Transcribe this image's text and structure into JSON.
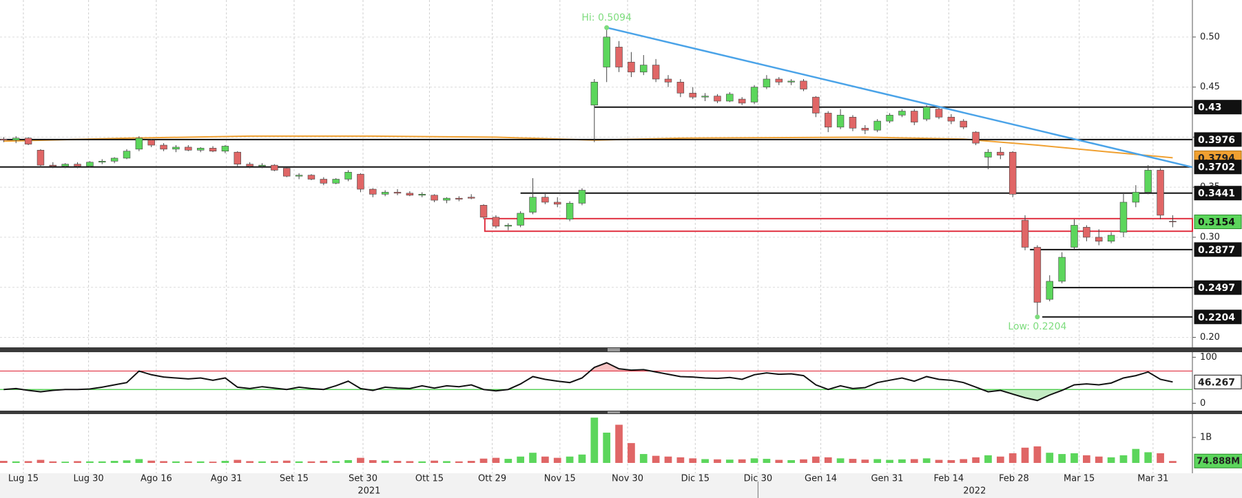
{
  "chart_data": [
    {
      "type": "candlestick",
      "up_color": "#5cd65c",
      "down_color": "#e06666",
      "xlim": [
        -0.3,
        96.6
      ],
      "ylim": [
        0.19,
        0.537
      ],
      "grid": true,
      "yticks": [
        {
          "value": 0.2,
          "label": "0.20"
        },
        0.25,
        {
          "value": 0.3,
          "label": "0.30"
        },
        0.35,
        {
          "value": 0.4,
          "label": "0.40"
        },
        0.45,
        {
          "value": 0.5,
          "label": "0.50"
        }
      ],
      "candles": [
        [
          0.398,
          0.4,
          0.395,
          0.397
        ],
        [
          0.397,
          0.401,
          0.394,
          0.399
        ],
        [
          0.399,
          0.4,
          0.392,
          0.393
        ],
        [
          0.387,
          0.388,
          0.37,
          0.372
        ],
        [
          0.372,
          0.375,
          0.369,
          0.371
        ],
        [
          0.371,
          0.374,
          0.369,
          0.373
        ],
        [
          0.373,
          0.375,
          0.369,
          0.371
        ],
        [
          0.371,
          0.376,
          0.37,
          0.375
        ],
        [
          0.375,
          0.378,
          0.373,
          0.376
        ],
        [
          0.376,
          0.38,
          0.374,
          0.379
        ],
        [
          0.379,
          0.388,
          0.378,
          0.386
        ],
        [
          0.388,
          0.401,
          0.386,
          0.399
        ],
        [
          0.397,
          0.398,
          0.39,
          0.392
        ],
        [
          0.392,
          0.394,
          0.386,
          0.388
        ],
        [
          0.388,
          0.392,
          0.385,
          0.39
        ],
        [
          0.39,
          0.392,
          0.386,
          0.387
        ],
        [
          0.387,
          0.39,
          0.385,
          0.389
        ],
        [
          0.389,
          0.391,
          0.385,
          0.386
        ],
        [
          0.386,
          0.392,
          0.384,
          0.391
        ],
        [
          0.385,
          0.386,
          0.371,
          0.373
        ],
        [
          0.373,
          0.375,
          0.369,
          0.371
        ],
        [
          0.371,
          0.374,
          0.369,
          0.372
        ],
        [
          0.372,
          0.373,
          0.366,
          0.367
        ],
        [
          0.369,
          0.37,
          0.36,
          0.361
        ],
        [
          0.361,
          0.364,
          0.358,
          0.362
        ],
        [
          0.362,
          0.363,
          0.357,
          0.358
        ],
        [
          0.358,
          0.36,
          0.352,
          0.354
        ],
        [
          0.354,
          0.359,
          0.353,
          0.358
        ],
        [
          0.358,
          0.367,
          0.356,
          0.365
        ],
        [
          0.363,
          0.364,
          0.345,
          0.348
        ],
        [
          0.348,
          0.349,
          0.34,
          0.343
        ],
        [
          0.343,
          0.347,
          0.341,
          0.345
        ],
        [
          0.345,
          0.348,
          0.342,
          0.344
        ],
        [
          0.344,
          0.346,
          0.341,
          0.342
        ],
        [
          0.342,
          0.345,
          0.34,
          0.343
        ],
        [
          0.342,
          0.343,
          0.335,
          0.337
        ],
        [
          0.337,
          0.34,
          0.334,
          0.339
        ],
        [
          0.339,
          0.341,
          0.336,
          0.338
        ],
        [
          0.34,
          0.343,
          0.338,
          0.339
        ],
        [
          0.332,
          0.333,
          0.318,
          0.32
        ],
        [
          0.32,
          0.322,
          0.309,
          0.311
        ],
        [
          0.311,
          0.314,
          0.307,
          0.312
        ],
        [
          0.312,
          0.326,
          0.31,
          0.324
        ],
        [
          0.325,
          0.359,
          0.323,
          0.34
        ],
        [
          0.34,
          0.345,
          0.333,
          0.335
        ],
        [
          0.335,
          0.34,
          0.33,
          0.333
        ],
        [
          0.318,
          0.336,
          0.316,
          0.334
        ],
        [
          0.334,
          0.349,
          0.332,
          0.347
        ],
        [
          0.432,
          0.458,
          0.395,
          0.455
        ],
        [
          0.47,
          0.5094,
          0.455,
          0.5
        ],
        [
          0.49,
          0.496,
          0.465,
          0.47
        ],
        [
          0.475,
          0.485,
          0.46,
          0.465
        ],
        [
          0.465,
          0.482,
          0.462,
          0.472
        ],
        [
          0.472,
          0.478,
          0.455,
          0.458
        ],
        [
          0.458,
          0.462,
          0.45,
          0.455
        ],
        [
          0.455,
          0.458,
          0.44,
          0.444
        ],
        [
          0.444,
          0.45,
          0.438,
          0.44
        ],
        [
          0.44,
          0.444,
          0.436,
          0.441
        ],
        [
          0.441,
          0.443,
          0.434,
          0.436
        ],
        [
          0.436,
          0.445,
          0.435,
          0.443
        ],
        [
          0.438,
          0.44,
          0.432,
          0.434
        ],
        [
          0.435,
          0.452,
          0.433,
          0.45
        ],
        [
          0.45,
          0.462,
          0.448,
          0.458
        ],
        [
          0.458,
          0.46,
          0.452,
          0.455
        ],
        [
          0.455,
          0.458,
          0.452,
          0.456
        ],
        [
          0.456,
          0.458,
          0.446,
          0.448
        ],
        [
          0.44,
          0.441,
          0.42,
          0.424
        ],
        [
          0.424,
          0.426,
          0.405,
          0.41
        ],
        [
          0.41,
          0.428,
          0.408,
          0.422
        ],
        [
          0.42,
          0.422,
          0.406,
          0.409
        ],
        [
          0.409,
          0.412,
          0.403,
          0.407
        ],
        [
          0.407,
          0.418,
          0.405,
          0.416
        ],
        [
          0.416,
          0.424,
          0.414,
          0.422
        ],
        [
          0.422,
          0.428,
          0.42,
          0.426
        ],
        [
          0.426,
          0.428,
          0.412,
          0.415
        ],
        [
          0.418,
          0.432,
          0.416,
          0.43
        ],
        [
          0.428,
          0.43,
          0.418,
          0.42
        ],
        [
          0.42,
          0.423,
          0.413,
          0.416
        ],
        [
          0.416,
          0.418,
          0.408,
          0.41
        ],
        [
          0.405,
          0.406,
          0.392,
          0.394
        ],
        [
          0.38,
          0.388,
          0.368,
          0.385
        ],
        [
          0.385,
          0.39,
          0.378,
          0.382
        ],
        [
          0.385,
          0.386,
          0.34,
          0.343
        ],
        [
          0.317,
          0.322,
          0.287,
          0.29
        ],
        [
          0.29,
          0.292,
          0.2204,
          0.235
        ],
        [
          0.238,
          0.262,
          0.236,
          0.256
        ],
        [
          0.256,
          0.285,
          0.254,
          0.28
        ],
        [
          0.29,
          0.318,
          0.288,
          0.312
        ],
        [
          0.31,
          0.312,
          0.296,
          0.3
        ],
        [
          0.3,
          0.308,
          0.292,
          0.296
        ],
        [
          0.296,
          0.305,
          0.294,
          0.302
        ],
        [
          0.305,
          0.345,
          0.3,
          0.335
        ],
        [
          0.335,
          0.352,
          0.33,
          0.345
        ],
        [
          0.345,
          0.372,
          0.343,
          0.367
        ],
        [
          0.367,
          0.369,
          0.318,
          0.322
        ],
        [
          0.316,
          0.322,
          0.31,
          0.3154
        ]
      ],
      "ma": {
        "color": "#f0a030",
        "x": [
          0,
          10,
          20,
          30,
          40,
          48,
          55,
          70,
          78,
          84,
          90,
          95
        ],
        "values": [
          0.396,
          0.399,
          0.401,
          0.401,
          0.4,
          0.397,
          0.399,
          0.4,
          0.398,
          0.392,
          0.385,
          0.3794
        ]
      },
      "levels": [
        {
          "value": 0.43,
          "x0": 48
        },
        {
          "value": 0.3976,
          "x0": -0.3
        },
        {
          "value": 0.3702,
          "x0": -0.3
        },
        {
          "value": 0.3441,
          "x0": 42
        },
        {
          "value": 0.2877,
          "x0": 83.4
        },
        {
          "value": 0.2497,
          "x0": 84.7
        },
        {
          "value": 0.2204,
          "x0": 84.4
        }
      ],
      "band": {
        "values": [
          0.3186,
          0.306
        ],
        "x0": 39.1,
        "color": "#e03040"
      },
      "trend": {
        "color": "#4aa3e8",
        "x": [
          49,
          96.6
        ],
        "y": [
          0.5094,
          0.37
        ]
      },
      "annotations": [
        {
          "text": "Hi: 0.5094",
          "x": 49,
          "y": 0.5094
        },
        {
          "text": "Low: 0.2204",
          "x": 84,
          "y": 0.2204
        }
      ]
    },
    {
      "type": "line",
      "color": "#111111",
      "xlim": [
        -0.3,
        96.6
      ],
      "ylim": [
        -16,
        111
      ],
      "yticks": [
        0,
        100
      ],
      "overbought": 70,
      "oversold": 30,
      "overbought_color": "#e03040",
      "oversold_color": "#3cc83c",
      "values": [
        30,
        32,
        28,
        25,
        28,
        30,
        30,
        31,
        35,
        40,
        45,
        70,
        62,
        57,
        55,
        53,
        55,
        50,
        55,
        35,
        32,
        36,
        33,
        30,
        35,
        32,
        30,
        38,
        48,
        32,
        28,
        35,
        33,
        32,
        38,
        33,
        38,
        36,
        40,
        30,
        27,
        30,
        42,
        58,
        52,
        48,
        45,
        55,
        78,
        88,
        75,
        72,
        73,
        68,
        63,
        58,
        57,
        55,
        54,
        56,
        52,
        62,
        66,
        63,
        64,
        60,
        40,
        30,
        38,
        32,
        34,
        45,
        50,
        55,
        48,
        58,
        52,
        50,
        45,
        35,
        25,
        28,
        20,
        12,
        6,
        18,
        28,
        40,
        42,
        40,
        44,
        55,
        60,
        68,
        52,
        46.267
      ]
    },
    {
      "type": "bar",
      "xlim": [
        -0.3,
        96.6
      ],
      "ylim": [
        -405,
        1919
      ],
      "yticks": [
        {
          "value": 1000,
          "label": "1B"
        }
      ],
      "values": [
        80,
        60,
        70,
        120,
        60,
        50,
        70,
        60,
        60,
        80,
        100,
        150,
        90,
        70,
        60,
        60,
        60,
        50,
        80,
        120,
        70,
        60,
        70,
        90,
        60,
        60,
        80,
        70,
        110,
        200,
        110,
        90,
        80,
        70,
        60,
        90,
        70,
        60,
        80,
        170,
        200,
        160,
        250,
        400,
        250,
        200,
        250,
        330,
        1780,
        1190,
        1500,
        780,
        350,
        280,
        250,
        220,
        180,
        150,
        140,
        130,
        140,
        180,
        160,
        120,
        110,
        140,
        250,
        220,
        180,
        160,
        130,
        150,
        120,
        140,
        150,
        180,
        120,
        110,
        150,
        220,
        300,
        250,
        380,
        600,
        650,
        400,
        350,
        380,
        300,
        250,
        220,
        300,
        550,
        420,
        380,
        74.888
      ],
      "value_labels": [
        null,
        null,
        null,
        null,
        null,
        null,
        null,
        null,
        null,
        null,
        null,
        null,
        null,
        null,
        null,
        null,
        null,
        null,
        null,
        null,
        null,
        null,
        null,
        null,
        null,
        null,
        null,
        null,
        null,
        null,
        null,
        null,
        null,
        null,
        null,
        null,
        null,
        null,
        null,
        null,
        null,
        null,
        null,
        null,
        null,
        null,
        null,
        null,
        null,
        null,
        null,
        null,
        null,
        null,
        null,
        null,
        null,
        null,
        null,
        null,
        null,
        null,
        null,
        null,
        null,
        null,
        null,
        null,
        null,
        null,
        null,
        null,
        null,
        null,
        null,
        null,
        null,
        null,
        null,
        null,
        null,
        null,
        null,
        null,
        null,
        null,
        null,
        null,
        null,
        null,
        null,
        null,
        null,
        null,
        null,
        "74.888M"
      ],
      "xticks": [
        {
          "value": 1.6,
          "label": "Lug 15"
        },
        {
          "value": 6.9,
          "label": "Lug 30"
        },
        {
          "value": 12.4,
          "label": "Ago 16"
        },
        {
          "value": 18.1,
          "label": "Ago 31"
        },
        {
          "value": 23.6,
          "label": "Set 15"
        },
        {
          "value": 29.2,
          "label": "Set 30"
        },
        {
          "value": 34.6,
          "label": "Ott 15"
        },
        {
          "value": 39.7,
          "label": "Ott 29"
        },
        {
          "value": 45.2,
          "label": "Nov 15"
        },
        {
          "value": 50.7,
          "label": "Nov 30"
        },
        {
          "value": 56.2,
          "label": "Dic 15"
        },
        {
          "value": 61.3,
          "label": "Dic 30"
        },
        {
          "value": 66.4,
          "label": "Gen 14"
        },
        {
          "value": 71.8,
          "label": "Gen 31"
        },
        {
          "value": 76.8,
          "label": "Feb 14"
        },
        {
          "value": 82.1,
          "label": "Feb 28"
        },
        {
          "value": 87.4,
          "label": "Mar 15"
        },
        {
          "value": 93.4,
          "label": "Mar 31"
        }
      ],
      "years": [
        {
          "value": 29.7,
          "label": "2021"
        },
        {
          "value": 78.9,
          "label": "2022"
        }
      ],
      "year_divider": 61.3
    }
  ]
}
